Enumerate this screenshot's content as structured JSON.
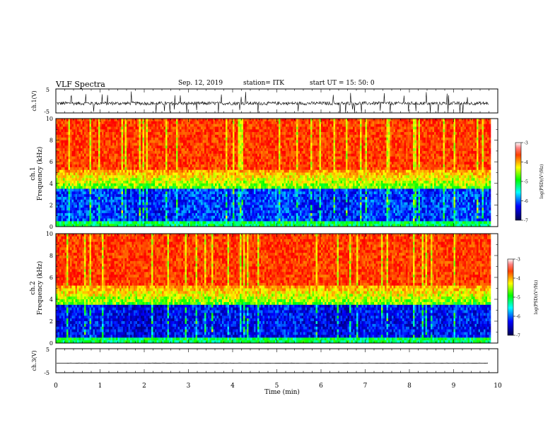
{
  "header": {
    "title": "VLF Spectra",
    "date": "Sep. 12, 2019",
    "station": "station= ITK",
    "start_ut": "start UT =   15: 50: 0"
  },
  "chart_data": [
    {
      "type": "line",
      "panel": "ch1-waveform",
      "ylabel": "ch.1(V)",
      "ylim": [
        -5,
        5
      ],
      "yticks": [
        "5",
        "-5"
      ],
      "xlim": [
        0,
        10
      ],
      "baseline_v": -1.0,
      "noise_amplitude_v": 0.7,
      "impulse_peak_v": 5.0,
      "data_end_min": 9.8
    },
    {
      "type": "heatmap",
      "panel": "ch1-spectrogram",
      "ylabel_channel": "ch.1",
      "ylabel": "Frequency  (kHz)",
      "ylim": [
        0,
        10
      ],
      "yticks": [
        "0",
        "2",
        "4",
        "6",
        "8",
        "10"
      ],
      "xlim": [
        0,
        10
      ],
      "data_end_min": 9.8,
      "colorbar": {
        "label": "log(PSD)(V²/Hz)",
        "range": [
          -7,
          -3
        ],
        "ticks": [
          "-3",
          "-4",
          "-5",
          "-6",
          "-7"
        ]
      }
    },
    {
      "type": "heatmap",
      "panel": "ch2-spectrogram",
      "ylabel_channel": "ch.2",
      "ylabel": "Frequency  (kHz)",
      "ylim": [
        0,
        10
      ],
      "yticks": [
        "0",
        "2",
        "4",
        "6",
        "8",
        "10"
      ],
      "xlim": [
        0,
        10
      ],
      "data_end_min": 9.8,
      "colorbar": {
        "label": "log(PSD)(V²/Hz)",
        "range": [
          -7,
          -3
        ],
        "ticks": [
          "-3",
          "-4",
          "-5",
          "-6",
          "-7"
        ]
      }
    },
    {
      "type": "line",
      "panel": "ch3-waveform",
      "ylabel": "ch.3(V)",
      "ylim": [
        -5,
        5
      ],
      "yticks": [
        "5",
        "-5"
      ],
      "xlim": [
        0,
        10
      ],
      "baseline_v": -1.0,
      "data_end_min": 9.8
    }
  ],
  "xaxis": {
    "label": "Time  (min)",
    "ticks": [
      "0",
      "1",
      "2",
      "3",
      "4",
      "5",
      "6",
      "7",
      "8",
      "9",
      "10"
    ]
  },
  "colormap": [
    "#000080",
    "#0000ff",
    "#00ffff",
    "#00ff00",
    "#ffff00",
    "#ff8000",
    "#ff0000"
  ]
}
